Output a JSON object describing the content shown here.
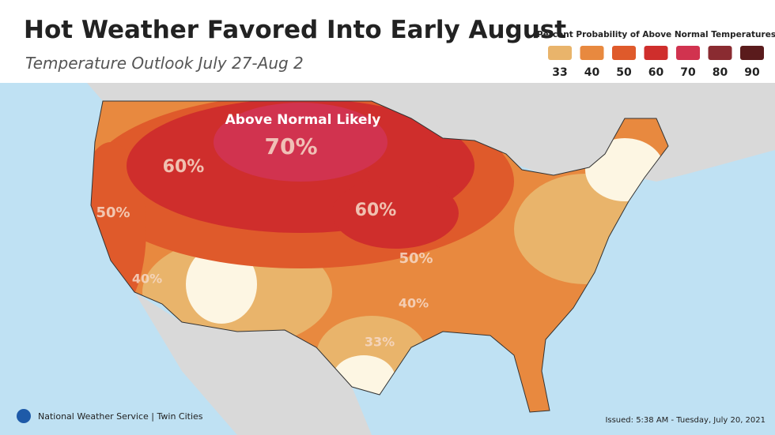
{
  "header": {
    "title": "Hot Weather Favored Into Early August",
    "subtitle": "Temperature Outlook July 27-Aug 2"
  },
  "legend": {
    "title": "Percent Probability of Above Normal Temperatures",
    "items": [
      {
        "label": 33,
        "color": "#e9b46b"
      },
      {
        "label": 40,
        "color": "#e8893f"
      },
      {
        "label": 50,
        "color": "#df5a2b"
      },
      {
        "label": 60,
        "color": "#cf2e2c"
      },
      {
        "label": 70,
        "color": "#d1334f"
      },
      {
        "label": 80,
        "color": "#8a2b31"
      },
      {
        "label": 90,
        "color": "#5a1b1c"
      }
    ]
  },
  "map": {
    "labels": [
      "Above Normal Likely",
      "70%",
      "60%",
      "60%",
      "50%",
      "50%",
      "40%",
      "40%",
      "33%"
    ]
  },
  "footer": {
    "agency": "National Weather Service | Twin Cities",
    "issued": "Issued: 5:38 AM - Tuesday, July 20, 2021"
  }
}
